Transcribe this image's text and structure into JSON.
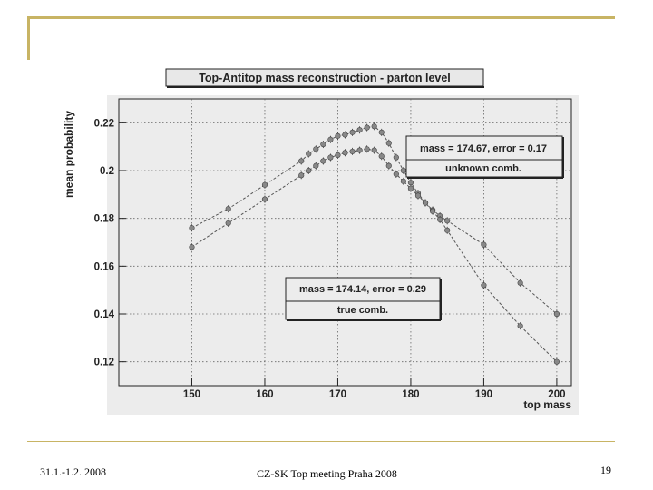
{
  "footer": {
    "date": "31.1.-1.2. 2008",
    "meeting": "CZ-SK Top meeting Praha 2008",
    "page": "19"
  },
  "chart_data": {
    "type": "line",
    "title": "Top-Antitop mass reconstruction - parton level",
    "xlabel": "top mass",
    "ylabel": "mean probability",
    "xlim": [
      140,
      202
    ],
    "ylim": [
      0.11,
      0.23
    ],
    "xticks": [
      150,
      160,
      170,
      180,
      190,
      200
    ],
    "yticks": [
      0.12,
      0.14,
      0.16,
      0.18,
      0.2,
      0.22
    ],
    "grid": true,
    "series": [
      {
        "name": "unknown comb.",
        "fit_label": "mass = 174.67, error = 0.17",
        "color": "#888888",
        "x": [
          150,
          155,
          160,
          165,
          166,
          167,
          168,
          169,
          170,
          171,
          172,
          173,
          174,
          175,
          176,
          177,
          178,
          179,
          180,
          181,
          182,
          183,
          184,
          185,
          190,
          195,
          200
        ],
        "y": [
          0.176,
          0.184,
          0.194,
          0.204,
          0.207,
          0.209,
          0.211,
          0.213,
          0.2145,
          0.215,
          0.216,
          0.217,
          0.218,
          0.2185,
          0.216,
          0.2115,
          0.2055,
          0.2,
          0.195,
          0.1905,
          0.1865,
          0.1835,
          0.181,
          0.179,
          0.169,
          0.153,
          0.14
        ]
      },
      {
        "name": "true comb.",
        "fit_label": "mass = 174.14, error = 0.29",
        "color": "#888888",
        "x": [
          150,
          155,
          160,
          165,
          166,
          167,
          168,
          169,
          170,
          171,
          172,
          173,
          174,
          175,
          176,
          177,
          178,
          179,
          180,
          181,
          182,
          183,
          184,
          185,
          190,
          195,
          200
        ],
        "y": [
          0.168,
          0.178,
          0.188,
          0.198,
          0.2,
          0.202,
          0.204,
          0.2055,
          0.2065,
          0.2075,
          0.208,
          0.2085,
          0.209,
          0.2085,
          0.206,
          0.202,
          0.1985,
          0.1955,
          0.1925,
          0.1895,
          0.1865,
          0.183,
          0.1795,
          0.175,
          0.152,
          0.135,
          0.12
        ]
      }
    ]
  }
}
